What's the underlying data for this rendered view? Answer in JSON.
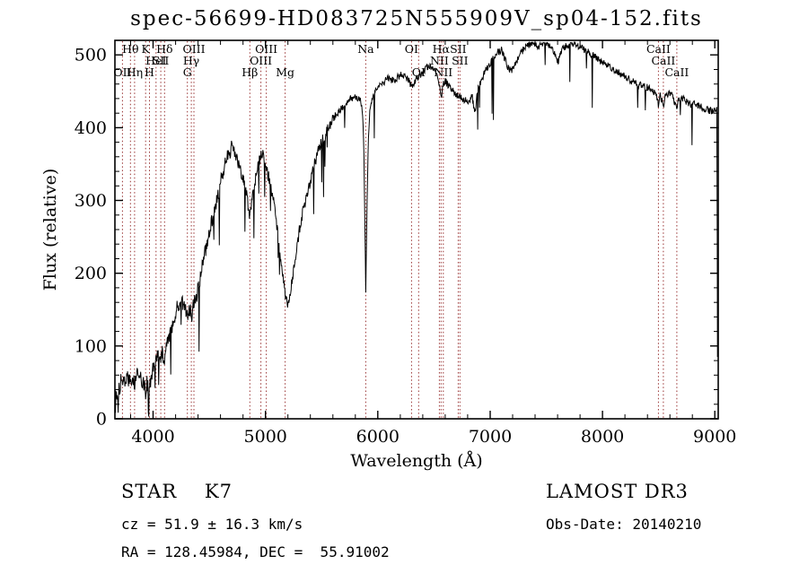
{
  "chart_data": {
    "type": "line",
    "title": "spec-56699-HD083725N555909V_sp04-152.fits",
    "xlabel": "Wavelength (Å)",
    "ylabel": "Flux (relative)",
    "xlim": [
      3660,
      9030
    ],
    "ylim": [
      0,
      520
    ],
    "xticks": [
      4000,
      5000,
      6000,
      7000,
      8000,
      9000
    ],
    "yticks": [
      0,
      100,
      200,
      300,
      400,
      500
    ],
    "x_minor_step": 200,
    "y_minor_step": 20,
    "grid": false,
    "legend": "none",
    "line_color": "#000000",
    "marker_color": "#993333",
    "spectral_lines": [
      {
        "label": "Hθ",
        "wavelength": 3798,
        "row": 1
      },
      {
        "label": "K",
        "wavelength": 3933,
        "row": 1
      },
      {
        "label": "Hδ",
        "wavelength": 4102,
        "row": 1
      },
      {
        "label": "OIII",
        "wavelength": 4363,
        "row": 1
      },
      {
        "label": "OIII",
        "wavelength": 5007,
        "row": 1
      },
      {
        "label": "Na",
        "wavelength": 5893,
        "row": 1
      },
      {
        "label": "OI",
        "wavelength": 6300,
        "row": 1
      },
      {
        "label": "Hα",
        "wavelength": 6563,
        "row": 1
      },
      {
        "label": "SII",
        "wavelength": 6716,
        "row": 1
      },
      {
        "label": "CaII",
        "wavelength": 8498,
        "row": 1
      },
      {
        "label": "HeI",
        "wavelength": 4026,
        "row": 2
      },
      {
        "label": "SII",
        "wavelength": 4068,
        "row": 2
      },
      {
        "label": "Hγ",
        "wavelength": 4340,
        "row": 2
      },
      {
        "label": "OIII",
        "wavelength": 4959,
        "row": 2
      },
      {
        "label": "NII",
        "wavelength": 6548,
        "row": 2
      },
      {
        "label": "SII",
        "wavelength": 6731,
        "row": 2
      },
      {
        "label": "CaII",
        "wavelength": 8542,
        "row": 2
      },
      {
        "label": "OII",
        "wavelength": 3727,
        "row": 3
      },
      {
        "label": "Hη",
        "wavelength": 3835,
        "row": 3
      },
      {
        "label": "H",
        "wavelength": 3968,
        "row": 3
      },
      {
        "label": "G",
        "wavelength": 4305,
        "row": 3
      },
      {
        "label": "Hβ",
        "wavelength": 4861,
        "row": 3
      },
      {
        "label": "Mg",
        "wavelength": 5175,
        "row": 3
      },
      {
        "label": "OI",
        "wavelength": 6363,
        "row": 3
      },
      {
        "label": "NII",
        "wavelength": 6583,
        "row": 3
      },
      {
        "label": "CaII",
        "wavelength": 8662,
        "row": 3
      }
    ],
    "spectrum_anchors": [
      [
        3665,
        12
      ],
      [
        3672,
        40
      ],
      [
        3680,
        22
      ],
      [
        3690,
        45
      ],
      [
        3700,
        38
      ],
      [
        3710,
        52
      ],
      [
        3720,
        48
      ],
      [
        3730,
        55
      ],
      [
        3740,
        50
      ],
      [
        3750,
        56
      ],
      [
        3760,
        52
      ],
      [
        3770,
        58
      ],
      [
        3780,
        54
      ],
      [
        3790,
        57
      ],
      [
        3800,
        52
      ],
      [
        3810,
        58
      ],
      [
        3820,
        55
      ],
      [
        3835,
        48
      ],
      [
        3850,
        60
      ],
      [
        3870,
        62
      ],
      [
        3890,
        58
      ],
      [
        3910,
        50
      ],
      [
        3925,
        42
      ],
      [
        3933,
        34
      ],
      [
        3945,
        48
      ],
      [
        3955,
        50
      ],
      [
        3968,
        38
      ],
      [
        3980,
        55
      ],
      [
        4000,
        68
      ],
      [
        4020,
        78
      ],
      [
        4040,
        85
      ],
      [
        4060,
        82
      ],
      [
        4080,
        92
      ],
      [
        4102,
        82
      ],
      [
        4120,
        100
      ],
      [
        4140,
        110
      ],
      [
        4160,
        118
      ],
      [
        4180,
        132
      ],
      [
        4200,
        148
      ],
      [
        4220,
        155
      ],
      [
        4240,
        160
      ],
      [
        4260,
        162
      ],
      [
        4280,
        155
      ],
      [
        4305,
        140
      ],
      [
        4320,
        152
      ],
      [
        4340,
        148
      ],
      [
        4355,
        160
      ],
      [
        4363,
        155
      ],
      [
        4380,
        170
      ],
      [
        4400,
        180
      ],
      [
        4420,
        196
      ],
      [
        4440,
        210
      ],
      [
        4460,
        225
      ],
      [
        4480,
        240
      ],
      [
        4500,
        255
      ],
      [
        4520,
        268
      ],
      [
        4540,
        282
      ],
      [
        4560,
        295
      ],
      [
        4580,
        310
      ],
      [
        4600,
        325
      ],
      [
        4620,
        338
      ],
      [
        4640,
        348
      ],
      [
        4660,
        358
      ],
      [
        4680,
        366
      ],
      [
        4700,
        372
      ],
      [
        4720,
        368
      ],
      [
        4740,
        358
      ],
      [
        4760,
        350
      ],
      [
        4780,
        340
      ],
      [
        4800,
        330
      ],
      [
        4820,
        318
      ],
      [
        4840,
        300
      ],
      [
        4861,
        275
      ],
      [
        4880,
        300
      ],
      [
        4900,
        320
      ],
      [
        4920,
        338
      ],
      [
        4940,
        352
      ],
      [
        4960,
        360
      ],
      [
        4980,
        364
      ],
      [
        5000,
        350
      ],
      [
        5020,
        338
      ],
      [
        5040,
        325
      ],
      [
        5060,
        310
      ],
      [
        5080,
        290
      ],
      [
        5100,
        268
      ],
      [
        5120,
        240
      ],
      [
        5140,
        215
      ],
      [
        5160,
        190
      ],
      [
        5180,
        168
      ],
      [
        5200,
        158
      ],
      [
        5220,
        172
      ],
      [
        5240,
        192
      ],
      [
        5260,
        215
      ],
      [
        5280,
        238
      ],
      [
        5300,
        258
      ],
      [
        5320,
        275
      ],
      [
        5340,
        290
      ],
      [
        5360,
        302
      ],
      [
        5380,
        315
      ],
      [
        5400,
        326
      ],
      [
        5420,
        340
      ],
      [
        5440,
        352
      ],
      [
        5460,
        362
      ],
      [
        5480,
        372
      ],
      [
        5500,
        380
      ],
      [
        5520,
        388
      ],
      [
        5540,
        394
      ],
      [
        5560,
        400
      ],
      [
        5580,
        406
      ],
      [
        5600,
        412
      ],
      [
        5620,
        416
      ],
      [
        5640,
        420
      ],
      [
        5660,
        424
      ],
      [
        5680,
        427
      ],
      [
        5700,
        430
      ],
      [
        5720,
        434
      ],
      [
        5740,
        437
      ],
      [
        5760,
        440
      ],
      [
        5780,
        442
      ],
      [
        5800,
        443
      ],
      [
        5820,
        441
      ],
      [
        5840,
        438
      ],
      [
        5860,
        430
      ],
      [
        5875,
        380
      ],
      [
        5893,
        175
      ],
      [
        5905,
        300
      ],
      [
        5915,
        380
      ],
      [
        5930,
        425
      ],
      [
        5950,
        442
      ],
      [
        5970,
        448
      ],
      [
        6000,
        455
      ],
      [
        6030,
        460
      ],
      [
        6060,
        464
      ],
      [
        6090,
        468
      ],
      [
        6120,
        466
      ],
      [
        6150,
        462
      ],
      [
        6180,
        470
      ],
      [
        6210,
        473
      ],
      [
        6240,
        470
      ],
      [
        6270,
        466
      ],
      [
        6300,
        458
      ],
      [
        6330,
        464
      ],
      [
        6360,
        468
      ],
      [
        6390,
        475
      ],
      [
        6420,
        480
      ],
      [
        6450,
        486
      ],
      [
        6480,
        483
      ],
      [
        6510,
        478
      ],
      [
        6540,
        468
      ],
      [
        6563,
        440
      ],
      [
        6580,
        458
      ],
      [
        6600,
        464
      ],
      [
        6630,
        458
      ],
      [
        6660,
        452
      ],
      [
        6690,
        447
      ],
      [
        6720,
        443
      ],
      [
        6750,
        440
      ],
      [
        6780,
        437
      ],
      [
        6810,
        436
      ],
      [
        6840,
        445
      ],
      [
        6860,
        420
      ],
      [
        6875,
        432
      ],
      [
        6890,
        455
      ],
      [
        6920,
        465
      ],
      [
        6950,
        475
      ],
      [
        6980,
        484
      ],
      [
        7010,
        491
      ],
      [
        7040,
        498
      ],
      [
        7070,
        504
      ],
      [
        7100,
        507
      ],
      [
        7130,
        495
      ],
      [
        7160,
        483
      ],
      [
        7190,
        478
      ],
      [
        7220,
        486
      ],
      [
        7250,
        495
      ],
      [
        7280,
        504
      ],
      [
        7310,
        510
      ],
      [
        7340,
        514
      ],
      [
        7370,
        516
      ],
      [
        7400,
        515
      ],
      [
        7430,
        512
      ],
      [
        7460,
        514
      ],
      [
        7490,
        517
      ],
      [
        7520,
        515
      ],
      [
        7550,
        512
      ],
      [
        7580,
        498
      ],
      [
        7605,
        490
      ],
      [
        7630,
        505
      ],
      [
        7660,
        511
      ],
      [
        7690,
        514
      ],
      [
        7720,
        515
      ],
      [
        7750,
        516
      ],
      [
        7780,
        513
      ],
      [
        7810,
        510
      ],
      [
        7840,
        507
      ],
      [
        7870,
        504
      ],
      [
        7900,
        501
      ],
      [
        7930,
        498
      ],
      [
        7960,
        494
      ],
      [
        8000,
        490
      ],
      [
        8040,
        486
      ],
      [
        8080,
        482
      ],
      [
        8120,
        478
      ],
      [
        8160,
        474
      ],
      [
        8200,
        470
      ],
      [
        8240,
        466
      ],
      [
        8280,
        462
      ],
      [
        8320,
        459
      ],
      [
        8360,
        457
      ],
      [
        8400,
        455
      ],
      [
        8440,
        452
      ],
      [
        8470,
        448
      ],
      [
        8498,
        432
      ],
      [
        8515,
        446
      ],
      [
        8542,
        428
      ],
      [
        8560,
        444
      ],
      [
        8590,
        447
      ],
      [
        8620,
        444
      ],
      [
        8662,
        424
      ],
      [
        8680,
        442
      ],
      [
        8710,
        440
      ],
      [
        8740,
        437
      ],
      [
        8770,
        434
      ],
      [
        8800,
        432
      ],
      [
        8830,
        434
      ],
      [
        8860,
        430
      ],
      [
        8890,
        428
      ],
      [
        8920,
        426
      ],
      [
        8950,
        424
      ],
      [
        8980,
        423
      ],
      [
        9000,
        428
      ],
      [
        9010,
        420
      ],
      [
        9018,
        430
      ],
      [
        9024,
        85
      ]
    ],
    "noise": {
      "seed": 20140210,
      "step": 4,
      "amp_blue": 11,
      "amp_mid": 8,
      "amp_red": 5,
      "blue_cutoff": 4700,
      "mid_cutoff": 5600,
      "spike_prob_blue": 0.05,
      "spike_prob_red": 0.018,
      "spike_min": 20,
      "spike_max": 90
    }
  },
  "annotations": {
    "class_label": "STAR    K7",
    "survey": "LAMOST DR3",
    "cz": "cz = 51.9 ± 16.3 km/s",
    "obs_date": "Obs-Date: 20140210",
    "coords": "RA = 128.45984, DEC =  55.91002"
  }
}
